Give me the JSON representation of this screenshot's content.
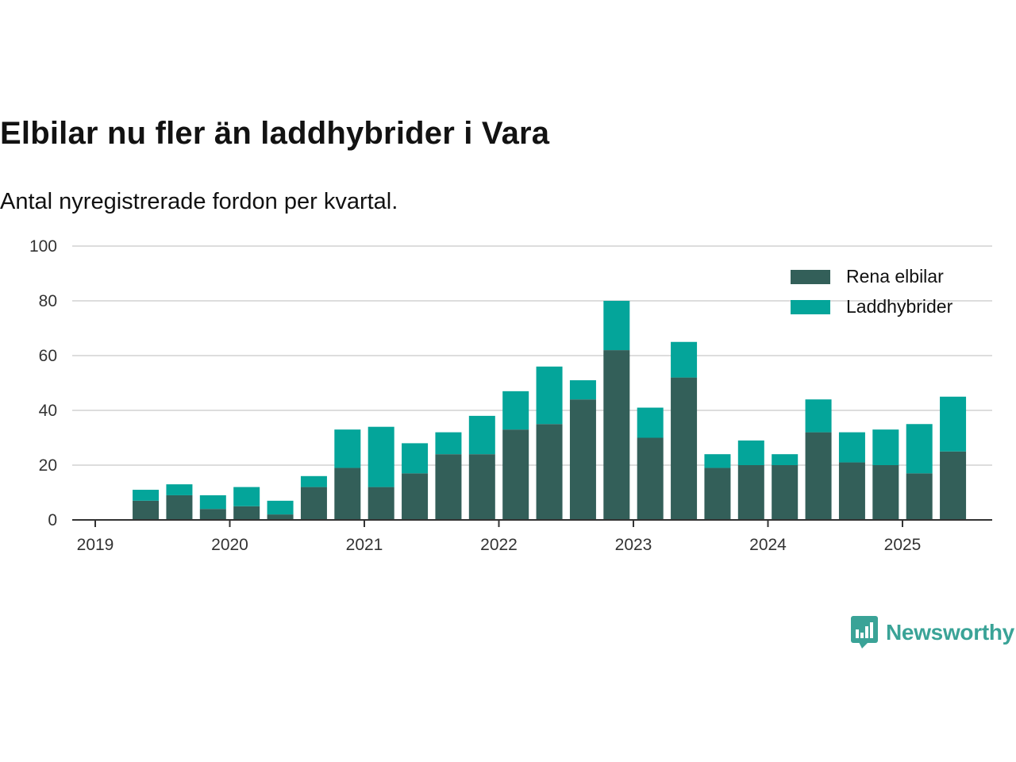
{
  "title": "Elbilar nu fler än laddhybrider i Vara",
  "subtitle": "Antal nyregistrerade fordon per kvartal.",
  "brand": {
    "name": "Newsworthy",
    "logo_icon": "newsworthy-bar-chart-bubble-icon"
  },
  "colors": {
    "elbilar": "#335f59",
    "laddhybrider": "#04a59a",
    "axis": "#333333",
    "grid": "#dddddd",
    "brand": "#3aa397"
  },
  "chart_data": {
    "type": "bar",
    "stacked": true,
    "categories": [
      "2019 Q2",
      "2019 Q3",
      "2019 Q4",
      "2020 Q1",
      "2020 Q2",
      "2020 Q3",
      "2020 Q4",
      "2021 Q1",
      "2021 Q2",
      "2021 Q3",
      "2021 Q4",
      "2022 Q1",
      "2022 Q2",
      "2022 Q3",
      "2022 Q4",
      "2023 Q1",
      "2023 Q2",
      "2023 Q3",
      "2023 Q4",
      "2024 Q1",
      "2024 Q2",
      "2024 Q3",
      "2024 Q4",
      "2025 Q1",
      "2025 Q2"
    ],
    "series": [
      {
        "name": "Rena elbilar",
        "values": [
          7,
          9,
          4,
          5,
          2,
          12,
          19,
          12,
          17,
          24,
          24,
          33,
          35,
          44,
          62,
          30,
          52,
          19,
          20,
          20,
          32,
          21,
          20,
          17,
          25
        ]
      },
      {
        "name": "Laddhybrider",
        "values": [
          4,
          4,
          5,
          7,
          5,
          4,
          14,
          22,
          11,
          8,
          14,
          14,
          21,
          7,
          18,
          11,
          13,
          5,
          9,
          4,
          12,
          11,
          13,
          18,
          20
        ]
      }
    ],
    "x_ticks": [
      "2019",
      "2020",
      "2021",
      "2022",
      "2023",
      "2024",
      "2025"
    ],
    "y_ticks": [
      0,
      20,
      40,
      60,
      80,
      100
    ],
    "ylim": [
      0,
      100
    ],
    "grid": true,
    "legend_position": "top-right"
  }
}
